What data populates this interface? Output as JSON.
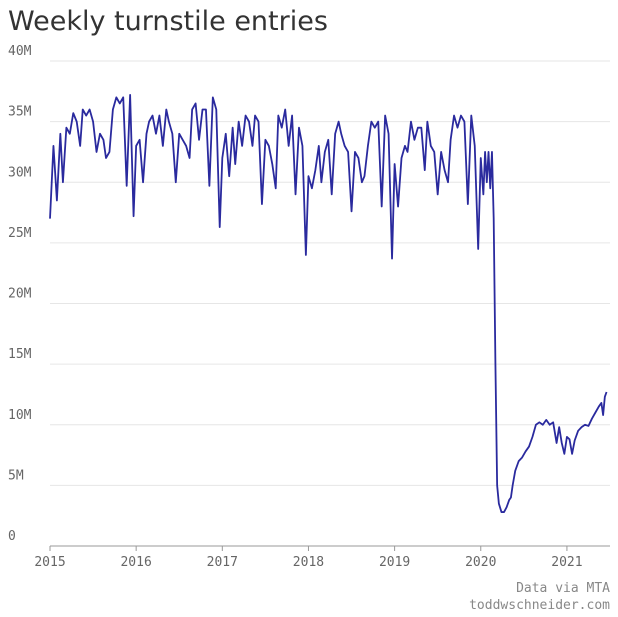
{
  "chart_data": {
    "type": "line",
    "title": "Weekly turnstile entries",
    "notes": [
      "Data via MTA",
      "toddwschneider.com"
    ],
    "x": [
      2015.0,
      2015.04,
      2015.08,
      2015.12,
      2015.15,
      2015.19,
      2015.23,
      2015.27,
      2015.31,
      2015.35,
      2015.38,
      2015.42,
      2015.46,
      2015.5,
      2015.54,
      2015.58,
      2015.62,
      2015.65,
      2015.69,
      2015.73,
      2015.77,
      2015.81,
      2015.85,
      2015.89,
      2015.93,
      2015.97,
      2016.0,
      2016.04,
      2016.08,
      2016.12,
      2016.15,
      2016.19,
      2016.23,
      2016.27,
      2016.31,
      2016.35,
      2016.38,
      2016.42,
      2016.46,
      2016.5,
      2016.54,
      2016.58,
      2016.62,
      2016.65,
      2016.69,
      2016.73,
      2016.77,
      2016.81,
      2016.85,
      2016.89,
      2016.93,
      2016.97,
      2017.0,
      2017.04,
      2017.08,
      2017.12,
      2017.15,
      2017.19,
      2017.23,
      2017.27,
      2017.31,
      2017.35,
      2017.38,
      2017.42,
      2017.46,
      2017.5,
      2017.54,
      2017.58,
      2017.62,
      2017.65,
      2017.69,
      2017.73,
      2017.77,
      2017.81,
      2017.85,
      2017.89,
      2017.93,
      2017.97,
      2018.0,
      2018.04,
      2018.08,
      2018.12,
      2018.15,
      2018.19,
      2018.23,
      2018.27,
      2018.31,
      2018.35,
      2018.38,
      2018.42,
      2018.46,
      2018.5,
      2018.54,
      2018.58,
      2018.62,
      2018.65,
      2018.69,
      2018.73,
      2018.77,
      2018.81,
      2018.85,
      2018.89,
      2018.93,
      2018.97,
      2019.0,
      2019.04,
      2019.08,
      2019.12,
      2019.15,
      2019.19,
      2019.23,
      2019.27,
      2019.31,
      2019.35,
      2019.38,
      2019.42,
      2019.46,
      2019.5,
      2019.54,
      2019.58,
      2019.62,
      2019.65,
      2019.69,
      2019.73,
      2019.77,
      2019.81,
      2019.85,
      2019.89,
      2019.93,
      2019.97,
      2020.0,
      2020.03,
      2020.05,
      2020.07,
      2020.09,
      2020.11,
      2020.13,
      2020.15,
      2020.17,
      2020.19,
      2020.21,
      2020.24,
      2020.27,
      2020.3,
      2020.33,
      2020.35,
      2020.37,
      2020.4,
      2020.44,
      2020.48,
      2020.52,
      2020.56,
      2020.6,
      2020.64,
      2020.68,
      2020.72,
      2020.76,
      2020.8,
      2020.84,
      2020.88,
      2020.91,
      2020.94,
      2020.97,
      2021.0,
      2021.03,
      2021.06,
      2021.09,
      2021.13,
      2021.17,
      2021.21,
      2021.25,
      2021.29,
      2021.33,
      2021.37,
      2021.4,
      2021.42,
      2021.44,
      2021.46
    ],
    "series": [
      {
        "color": "#2a2a9e",
        "values": [
          27,
          33,
          28.5,
          34,
          30,
          34.5,
          34,
          35.7,
          35,
          33,
          36,
          35.5,
          36,
          35,
          32.5,
          34,
          33.5,
          32,
          32.5,
          36,
          37,
          36.5,
          37,
          29.7,
          37.2,
          27.2,
          33,
          33.5,
          30,
          34,
          35,
          35.5,
          34,
          35.5,
          33,
          36,
          35,
          34,
          30,
          34,
          33.5,
          33,
          32,
          36,
          36.5,
          33.5,
          36,
          36,
          29.7,
          37,
          36,
          26.3,
          32,
          34,
          30.5,
          34.5,
          31.5,
          35,
          33,
          35.5,
          35,
          33,
          35.5,
          35,
          28.2,
          33.5,
          33,
          31.5,
          29.5,
          35.5,
          34.5,
          36,
          33,
          35.5,
          29,
          34.5,
          33,
          24,
          30.5,
          29.5,
          31,
          33,
          30,
          32.5,
          33.5,
          29,
          34,
          35,
          34,
          33,
          32.5,
          27.6,
          32.5,
          32,
          30,
          30.5,
          33,
          35,
          34.5,
          35,
          28,
          35.5,
          34,
          23.7,
          31.5,
          28,
          32,
          33,
          32.5,
          35,
          33.5,
          34.5,
          34.5,
          31,
          35,
          33,
          32.5,
          29,
          32.5,
          31,
          30,
          33.5,
          35.5,
          34.5,
          35.5,
          35,
          28.2,
          35.5,
          33,
          24.5,
          32,
          29,
          32.5,
          30,
          32.5,
          29.5,
          32.5,
          27,
          15,
          5,
          3.5,
          2.8,
          2.8,
          3.2,
          3.8,
          4,
          5,
          6.2,
          7,
          7.3,
          7.8,
          8.2,
          9,
          10,
          10.2,
          10,
          10.4,
          10,
          10.2,
          8.5,
          9.8,
          8.5,
          7.6,
          9,
          8.8,
          7.6,
          8.7,
          9.5,
          9.8,
          10,
          9.9,
          10.5,
          11,
          11.5,
          11.8,
          10.8,
          12.3,
          12.7
        ]
      }
    ],
    "xlim": [
      2015,
      2021.5
    ],
    "xticks": [
      2015,
      2016,
      2017,
      2018,
      2019,
      2020,
      2021
    ],
    "ylim": [
      0,
      40
    ],
    "yticks": [
      0,
      {
        "value": 5,
        "label": "5M"
      },
      {
        "value": 10,
        "label": "10M"
      },
      {
        "value": 15,
        "label": "15M"
      },
      {
        "value": 20,
        "label": "20M"
      },
      {
        "value": 25,
        "label": "25M"
      },
      {
        "value": 30,
        "label": "30M"
      },
      {
        "value": 35,
        "label": "35M"
      },
      {
        "value": 40,
        "label": "40M"
      }
    ],
    "grid": true
  }
}
